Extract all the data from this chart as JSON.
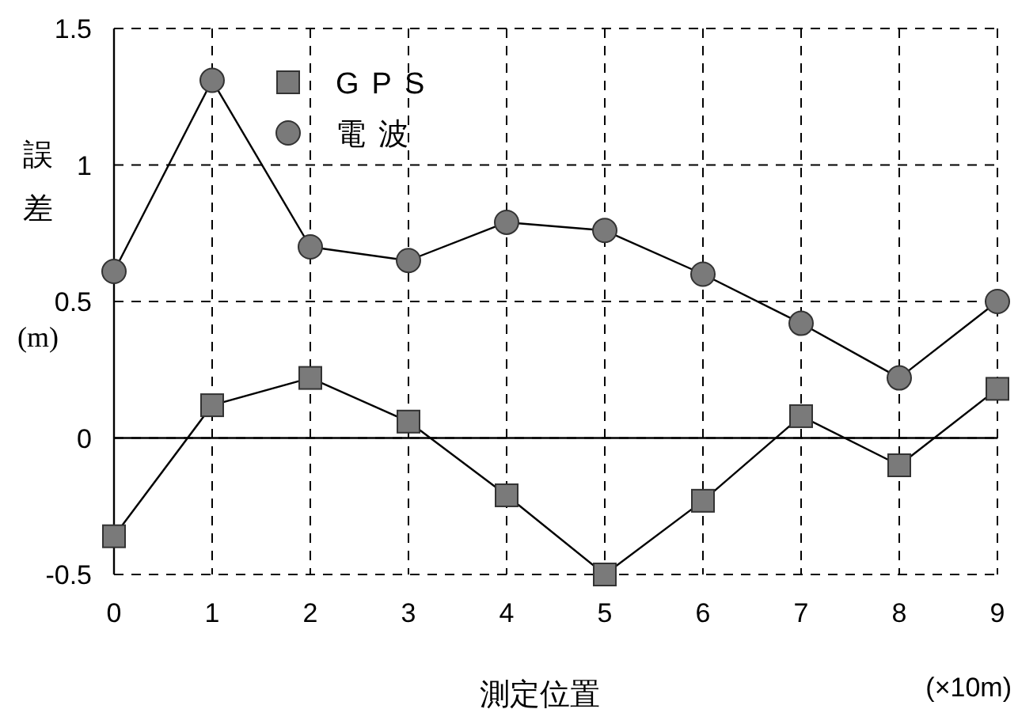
{
  "chart_data": {
    "type": "line",
    "xlabel": "測定位置",
    "ylabel": "誤差 (m)",
    "annotations": [
      "(×10m)"
    ],
    "x": [
      0,
      1,
      2,
      3,
      4,
      5,
      6,
      7,
      8,
      9
    ],
    "xlim": [
      0,
      9
    ],
    "xticks": [
      0,
      1,
      2,
      3,
      4,
      5,
      6,
      7,
      8,
      9
    ],
    "ylim": [
      -0.5,
      1.5
    ],
    "yticks": [
      -0.5,
      0,
      0.5,
      1,
      1.5
    ],
    "grid": true,
    "legend": "top left",
    "ref_lines": [
      {
        "axis": "y",
        "value": 0,
        "color": "#000000",
        "line_style": "solid"
      }
    ],
    "series": [
      {
        "name": "GPS",
        "color": "#7a7a7a",
        "marker": "square",
        "values": [
          -0.36,
          0.12,
          0.22,
          0.06,
          -0.21,
          -0.5,
          -0.23,
          0.08,
          -0.1,
          0.18
        ]
      },
      {
        "name": "電波",
        "color": "#7a7a7a",
        "marker": "circle",
        "values": [
          0.61,
          1.31,
          0.7,
          0.65,
          0.79,
          0.76,
          0.6,
          0.42,
          0.22,
          0.5
        ]
      }
    ]
  }
}
